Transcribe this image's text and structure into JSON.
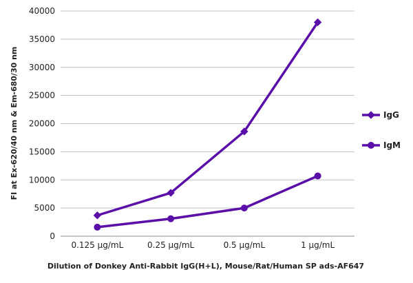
{
  "chart_data": {
    "type": "line",
    "categories": [
      "0.125 µg/mL",
      "0.25 µg/mL",
      "0.5 µg/mL",
      "1 µg/mL"
    ],
    "series": [
      {
        "name": "IgG",
        "marker": "diamond",
        "values": [
          3700,
          7700,
          18600,
          38000
        ]
      },
      {
        "name": "IgM",
        "marker": "circle",
        "values": [
          1600,
          3100,
          5000,
          10700
        ]
      }
    ],
    "title": "",
    "xlabel": "Dilution of Donkey Anti-Rabbit IgG(H+L), Mouse/Rat/Human SP ads-AF647",
    "ylabel": "FI at Ex-620/40 nm & Em-680/30 nm",
    "ylim": [
      0,
      40000
    ],
    "yticks": [
      "0",
      "5000",
      "10000",
      "15000",
      "20000",
      "25000",
      "30000",
      "35000",
      "40000"
    ],
    "grid": true,
    "legend_position": "right",
    "colors": {
      "series": "#5a0fa8",
      "grid": "#bfbfbf",
      "axis": "#8c8c8c"
    }
  }
}
